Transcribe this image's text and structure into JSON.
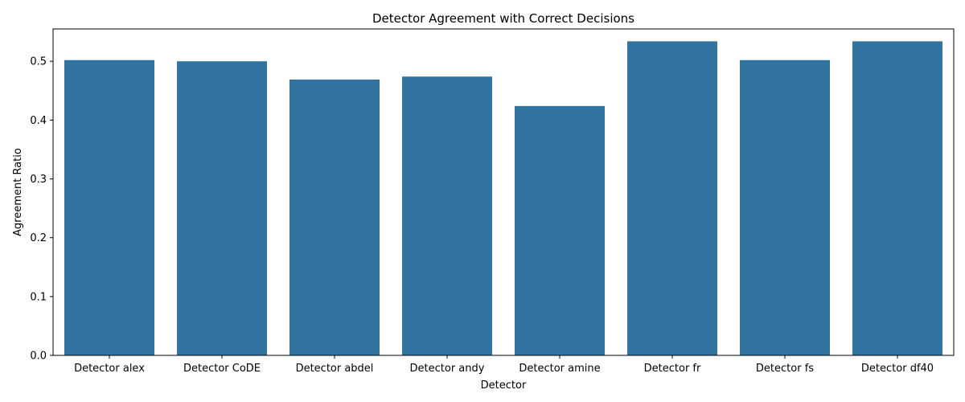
{
  "chart_data": {
    "type": "bar",
    "title": "Detector Agreement with Correct Decisions",
    "xlabel": "Detector",
    "ylabel": "Agreement Ratio",
    "categories": [
      "Detector alex",
      "Detector CoDE",
      "Detector abdel",
      "Detector andy",
      "Detector amine",
      "Detector fr",
      "Detector fs",
      "Detector df40"
    ],
    "values": [
      0.502,
      0.5,
      0.469,
      0.474,
      0.424,
      0.534,
      0.502,
      0.534
    ],
    "ylim": [
      0,
      0.555
    ],
    "yticks": [
      0.0,
      0.1,
      0.2,
      0.3,
      0.4,
      0.5
    ],
    "ytick_labels": [
      "0.0",
      "0.1",
      "0.2",
      "0.3",
      "0.4",
      "0.5"
    ],
    "bar_color": "#3274a1",
    "grid": false,
    "legend": "none"
  }
}
